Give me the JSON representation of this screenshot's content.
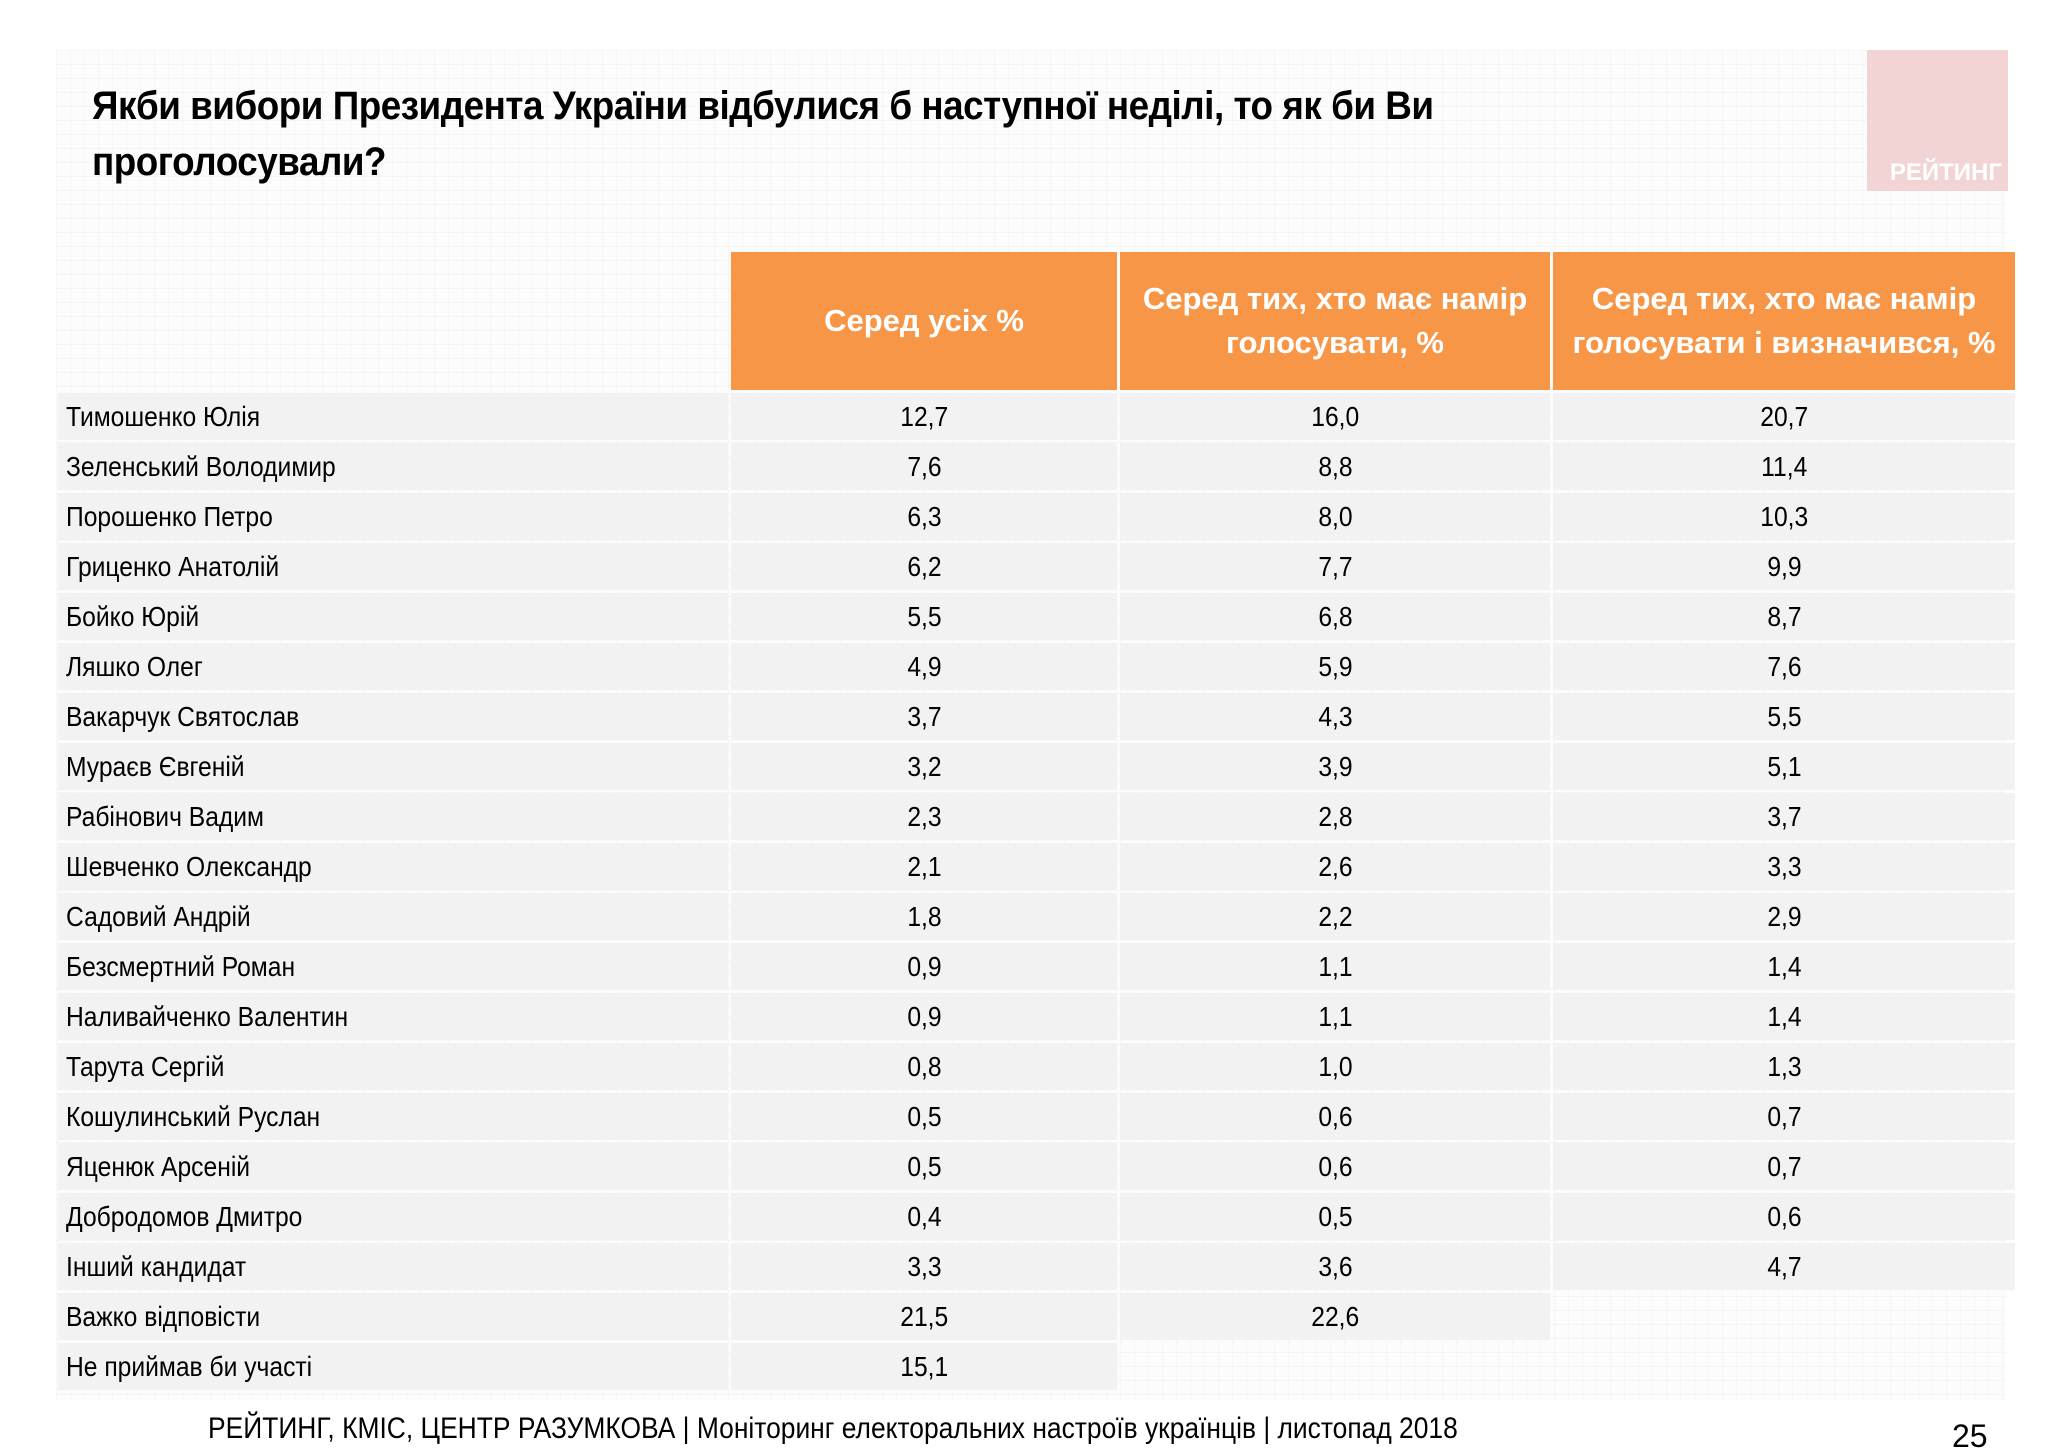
{
  "title": "Якби вибори Президента України відбулися б наступної неділі, то як би Ви проголосували?",
  "logo_text": "РЕЙТИНГ",
  "accent_color": "#f79646",
  "columns": [
    "Серед усіх %",
    "Серед тих, хто має намір голосувати, %",
    "Серед тих, хто має намір голосувати і визначився, %"
  ],
  "rows": [
    {
      "name": "Тимошенко Юлія",
      "values": [
        "12,7",
        "16,0",
        "20,7"
      ]
    },
    {
      "name": "Зеленський Володимир",
      "values": [
        "7,6",
        "8,8",
        "11,4"
      ]
    },
    {
      "name": "Порошенко Петро",
      "values": [
        "6,3",
        "8,0",
        "10,3"
      ]
    },
    {
      "name": "Гриценко Анатолій",
      "values": [
        "6,2",
        "7,7",
        "9,9"
      ]
    },
    {
      "name": "Бойко Юрій",
      "values": [
        "5,5",
        "6,8",
        "8,7"
      ]
    },
    {
      "name": "Ляшко Олег",
      "values": [
        "4,9",
        "5,9",
        "7,6"
      ]
    },
    {
      "name": "Вакарчук Святослав",
      "values": [
        "3,7",
        "4,3",
        "5,5"
      ]
    },
    {
      "name": "Мураєв Євгеній",
      "values": [
        "3,2",
        "3,9",
        "5,1"
      ]
    },
    {
      "name": "Рабінович Вадим",
      "values": [
        "2,3",
        "2,8",
        "3,7"
      ]
    },
    {
      "name": "Шевченко Олександр",
      "values": [
        "2,1",
        "2,6",
        "3,3"
      ]
    },
    {
      "name": "Садовий Андрій",
      "values": [
        "1,8",
        "2,2",
        "2,9"
      ]
    },
    {
      "name": "Безсмертний Роман",
      "values": [
        "0,9",
        "1,1",
        "1,4"
      ]
    },
    {
      "name": "Наливайченко Валентин",
      "values": [
        "0,9",
        "1,1",
        "1,4"
      ]
    },
    {
      "name": "Тарута Сергій",
      "values": [
        "0,8",
        "1,0",
        "1,3"
      ]
    },
    {
      "name": "Кошулинський Руслан",
      "values": [
        "0,5",
        "0,6",
        "0,7"
      ]
    },
    {
      "name": "Яценюк Арсеній",
      "values": [
        "0,5",
        "0,6",
        "0,7"
      ]
    },
    {
      "name": "Добродомов Дмитро",
      "values": [
        "0,4",
        "0,5",
        "0,6"
      ]
    },
    {
      "name": "Інший кандидат",
      "values": [
        "3,3",
        "3,6",
        "4,7"
      ]
    },
    {
      "name": "Важко відповісти",
      "values": [
        "21,5",
        "22,6"
      ]
    },
    {
      "name": "Не приймав би участі",
      "values": [
        "15,1"
      ]
    }
  ],
  "footer": "РЕЙТИНГ, КМІС, ЦЕНТР РАЗУМКОВА |  Моніторинг електоральних настроїв українців | листопад 2018",
  "page_number": "25"
}
